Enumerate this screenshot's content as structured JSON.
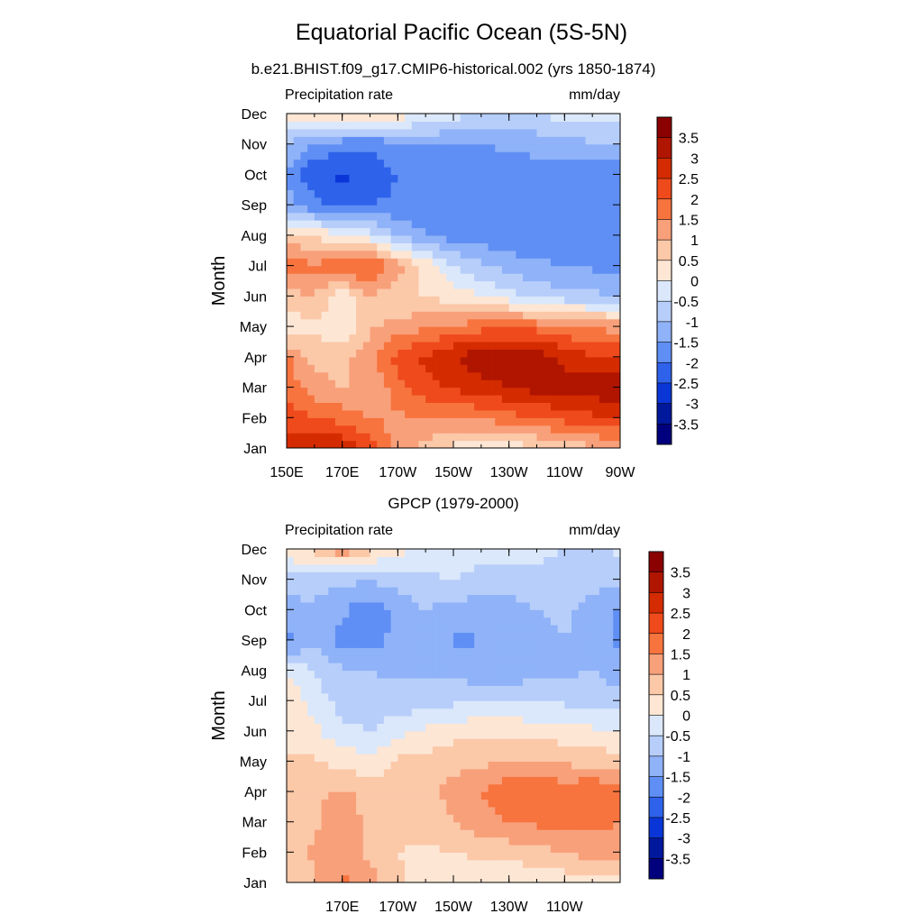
{
  "main_title": "Equatorial Pacific Ocean (5S-5N)",
  "colorbar_levels": [
    "3.5",
    "3",
    "2.5",
    "2",
    "1.5",
    "1",
    "0.5",
    "0",
    "-0.5",
    "-1",
    "-1.5",
    "-2",
    "-2.5",
    "-3",
    "-3.5"
  ],
  "colorbar_colors": [
    "#8b0000",
    "#b01500",
    "#d42b00",
    "#ef4a1c",
    "#f7743f",
    "#f8a07a",
    "#fbc8a8",
    "#fde6d4",
    "#dbe8fb",
    "#b7cefa",
    "#8fb2f8",
    "#5f8ff4",
    "#2f62ea",
    "#0a36d8",
    "#00189c",
    "#00007e"
  ],
  "chart_data": [
    {
      "type": "heatmap",
      "title": "b.e21.BHIST.f09_g17.CMIP6-historical.002 (yrs 1850-1874)",
      "left_label": "Precipitation rate",
      "right_label": "mm/day",
      "ylabel": "Month",
      "xlabel": "",
      "x_ticks": [
        "150E",
        "170E",
        "170W",
        "150W",
        "130W",
        "110W",
        "90W"
      ],
      "y_ticks": [
        "Jan",
        "Feb",
        "Mar",
        "Apr",
        "May",
        "Jun",
        "Jul",
        "Aug",
        "Sep",
        "Oct",
        "Nov",
        "Dec"
      ],
      "x_values": [
        150,
        160,
        170,
        180,
        190,
        200,
        210,
        220,
        230,
        240,
        250,
        260,
        270
      ],
      "y_values": [
        1,
        2,
        3,
        4,
        5,
        6,
        7,
        8,
        9,
        10,
        11,
        12
      ],
      "z": [
        [
          2.6,
          2.8,
          3.0,
          2.2,
          1.2,
          0.8,
          0.3,
          0.0,
          0.2,
          0.4,
          0.6,
          0.9,
          1.2
        ],
        [
          2.4,
          2.0,
          1.8,
          1.5,
          1.4,
          1.5,
          1.5,
          1.6,
          1.8,
          2.0,
          2.2,
          2.4,
          2.5
        ],
        [
          1.8,
          1.2,
          1.0,
          1.0,
          1.8,
          2.3,
          2.6,
          2.8,
          3.0,
          3.2,
          3.2,
          3.3,
          3.4
        ],
        [
          1.6,
          0.8,
          0.8,
          1.4,
          2.2,
          2.6,
          3.0,
          3.3,
          3.4,
          3.3,
          2.9,
          2.6,
          2.5
        ],
        [
          0.0,
          0.4,
          0.0,
          0.9,
          1.2,
          1.4,
          1.6,
          1.8,
          1.9,
          1.8,
          1.6,
          1.4,
          1.3
        ],
        [
          0.8,
          1.0,
          0.2,
          1.0,
          0.6,
          0.4,
          0.3,
          0.0,
          -0.3,
          -0.6,
          -0.8,
          -0.9,
          -1.0
        ],
        [
          1.8,
          1.6,
          1.8,
          2.2,
          1.2,
          0.4,
          -0.5,
          -0.9,
          -1.2,
          -1.4,
          -1.5,
          -1.6,
          -1.6
        ],
        [
          0.8,
          0.4,
          0.2,
          -0.2,
          -1.0,
          -1.5,
          -1.7,
          -1.8,
          -1.9,
          -1.9,
          -1.9,
          -1.9,
          -1.9
        ],
        [
          -1.2,
          -1.9,
          -2.1,
          -2.0,
          -1.9,
          -1.9,
          -1.9,
          -1.9,
          -1.9,
          -1.9,
          -1.9,
          -1.9,
          -2.0
        ],
        [
          -1.6,
          -2.4,
          -2.6,
          -2.4,
          -2.0,
          -1.9,
          -1.9,
          -1.8,
          -1.8,
          -1.8,
          -1.8,
          -1.8,
          -1.9
        ],
        [
          -1.0,
          -1.6,
          -1.8,
          -1.9,
          -1.6,
          -1.5,
          -1.5,
          -1.5,
          -1.4,
          -1.3,
          -1.2,
          -1.1,
          -1.0
        ],
        [
          0.2,
          0.4,
          0.6,
          0.5,
          0.3,
          0.0,
          -0.3,
          -0.5,
          -0.6,
          -0.5,
          -0.3,
          -0.2,
          -0.2
        ]
      ]
    },
    {
      "type": "heatmap",
      "title": "GPCP (1979-2000)",
      "left_label": "Precipitation rate",
      "right_label": "mm/day",
      "ylabel": "Month",
      "xlabel": "",
      "x_ticks": [
        "170E",
        "170W",
        "150W",
        "130W",
        "110W"
      ],
      "y_ticks": [
        "Jan",
        "Feb",
        "Mar",
        "Apr",
        "May",
        "Jun",
        "Jul",
        "Aug",
        "Sep",
        "Oct",
        "Nov",
        "Dec"
      ],
      "x_values": [
        150,
        160,
        170,
        180,
        190,
        200,
        210,
        220,
        230,
        240,
        250,
        260,
        270
      ],
      "y_values": [
        1,
        2,
        3,
        4,
        5,
        6,
        7,
        8,
        9,
        10,
        11,
        12
      ],
      "z": [
        [
          0.6,
          0.9,
          1.6,
          1.2,
          0.6,
          0.3,
          0.2,
          0.1,
          0.0,
          0.1,
          0.2,
          0.3,
          0.4
        ],
        [
          0.6,
          1.1,
          1.3,
          0.9,
          0.5,
          0.4,
          0.5,
          0.6,
          0.7,
          0.8,
          1.0,
          1.2,
          1.2
        ],
        [
          0.5,
          0.9,
          1.3,
          0.9,
          0.6,
          0.7,
          1.0,
          1.3,
          1.5,
          1.6,
          1.6,
          1.7,
          1.5
        ],
        [
          0.5,
          0.9,
          1.1,
          0.8,
          0.6,
          0.8,
          1.2,
          1.5,
          1.9,
          2.0,
          1.8,
          2.0,
          1.6
        ],
        [
          0.5,
          0.6,
          0.3,
          0.2,
          0.6,
          0.7,
          0.8,
          0.9,
          1.0,
          1.0,
          0.9,
          0.8,
          0.7
        ],
        [
          0.5,
          0.1,
          -0.4,
          -0.5,
          -0.2,
          0.1,
          0.3,
          0.4,
          0.4,
          0.3,
          0.2,
          0.1,
          0.0
        ],
        [
          0.4,
          -0.2,
          -0.7,
          -0.8,
          -0.8,
          -0.7,
          -0.6,
          -0.6,
          -0.6,
          -0.6,
          -0.6,
          -0.7,
          -0.7
        ],
        [
          0.0,
          -0.6,
          -0.9,
          -1.0,
          -1.1,
          -1.1,
          -1.2,
          -1.3,
          -1.3,
          -1.2,
          -1.1,
          -1.0,
          -1.3
        ],
        [
          -1.7,
          -1.1,
          -1.7,
          -1.8,
          -1.3,
          -1.1,
          -1.6,
          -1.5,
          -1.5,
          -1.2,
          -1.0,
          -1.1,
          -1.7
        ],
        [
          -1.2,
          -1.1,
          -1.4,
          -1.9,
          -1.3,
          -1.0,
          -1.2,
          -1.4,
          -1.3,
          -1.0,
          -0.9,
          -1.2,
          -1.6
        ],
        [
          -0.7,
          -0.8,
          -0.9,
          -0.9,
          -0.8,
          -0.6,
          -0.5,
          -0.6,
          -0.6,
          -0.6,
          -0.7,
          -0.8,
          -0.9
        ],
        [
          0.3,
          0.7,
          1.4,
          0.6,
          0.2,
          -0.1,
          -0.3,
          -0.4,
          -0.4,
          -0.4,
          -0.5,
          -0.6,
          -0.4
        ]
      ]
    }
  ]
}
